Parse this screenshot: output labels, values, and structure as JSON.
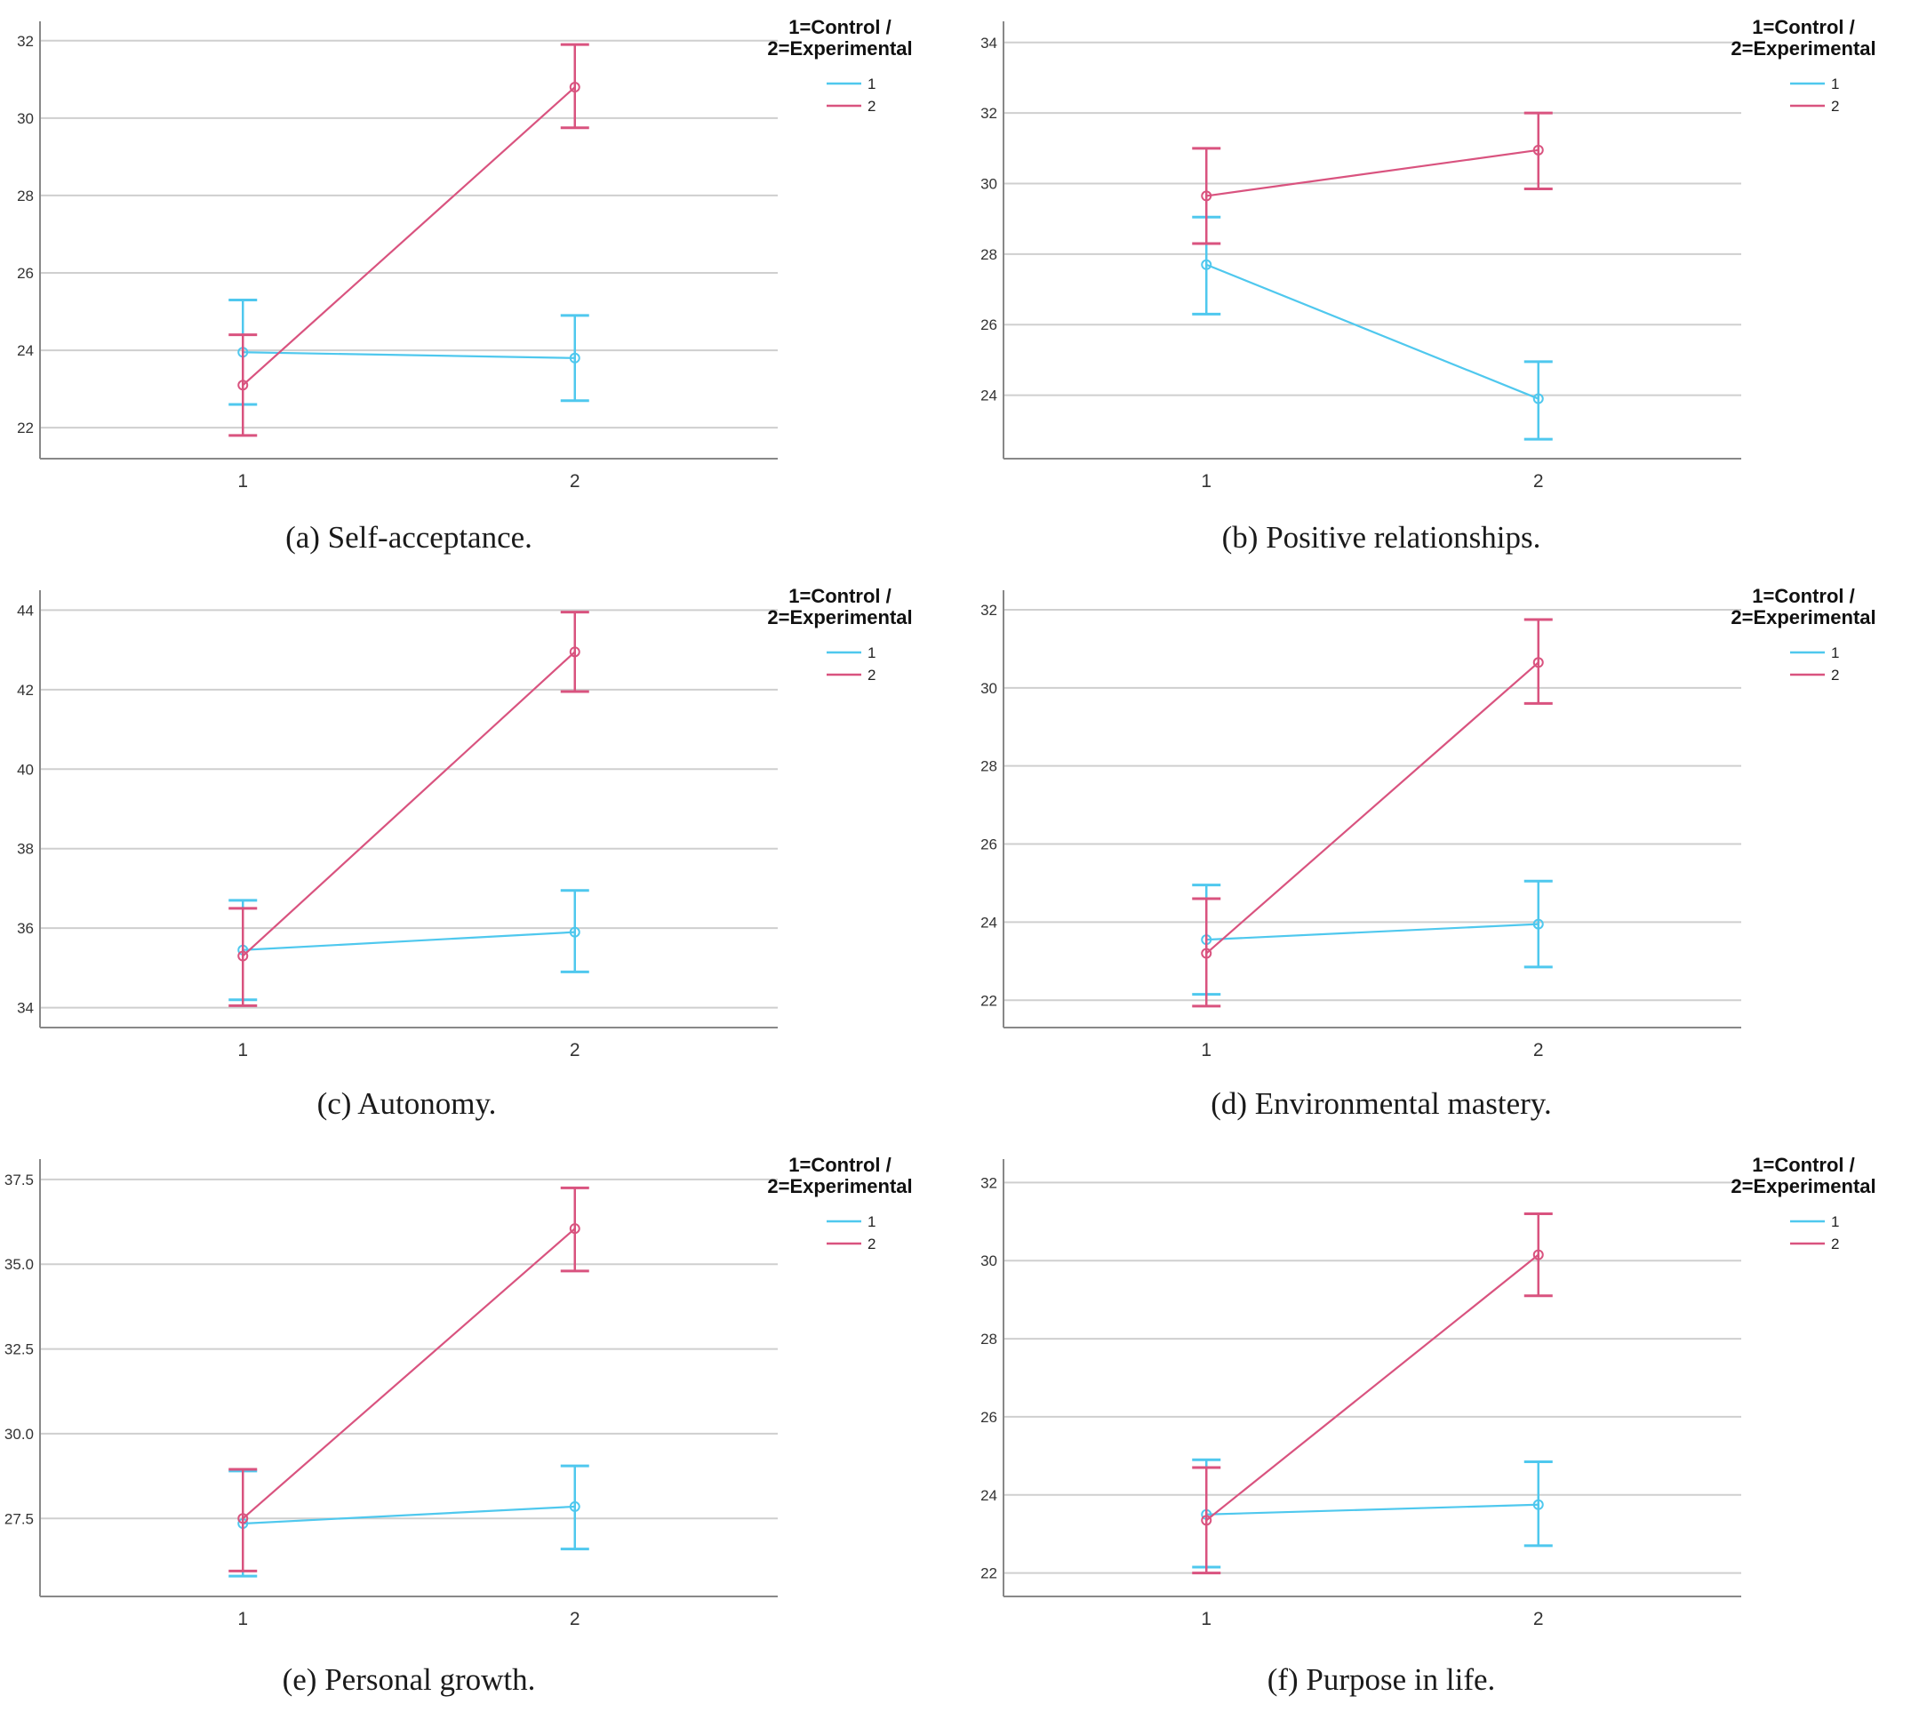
{
  "legend": {
    "title_lines": [
      "1=Control /",
      "2=Experimental"
    ],
    "entries": [
      {
        "label": "1",
        "color": "#4FC8EE"
      },
      {
        "label": "2",
        "color": "#D9537F"
      }
    ]
  },
  "chart_data": [
    {
      "id": "a",
      "type": "line",
      "caption": "(a) Self-acceptance.",
      "categories": [
        "1",
        "2"
      ],
      "y_ticks": [
        "22",
        "24",
        "26",
        "28",
        "30",
        "32"
      ],
      "ylim": [
        21.2,
        32.5
      ],
      "grid": true,
      "series": [
        {
          "name": "1",
          "values": [
            23.95,
            23.8
          ],
          "lower": [
            22.6,
            22.7
          ],
          "upper": [
            25.3,
            24.9
          ]
        },
        {
          "name": "2",
          "values": [
            23.1,
            30.8
          ],
          "lower": [
            21.8,
            29.75
          ],
          "upper": [
            24.4,
            31.9
          ]
        }
      ]
    },
    {
      "id": "b",
      "type": "line",
      "caption": "(b) Positive relationships.",
      "categories": [
        "1",
        "2"
      ],
      "y_ticks": [
        "24",
        "26",
        "28",
        "30",
        "32",
        "34"
      ],
      "ylim": [
        22.2,
        34.6
      ],
      "grid": true,
      "series": [
        {
          "name": "1",
          "values": [
            27.7,
            23.9
          ],
          "lower": [
            26.3,
            22.75
          ],
          "upper": [
            29.05,
            24.95
          ]
        },
        {
          "name": "2",
          "values": [
            29.65,
            30.95
          ],
          "lower": [
            28.3,
            29.85
          ],
          "upper": [
            31.0,
            32.0
          ]
        }
      ]
    },
    {
      "id": "c",
      "type": "line",
      "caption": "(c) Autonomy.",
      "categories": [
        "1",
        "2"
      ],
      "y_ticks": [
        "34",
        "36",
        "38",
        "40",
        "42",
        "44"
      ],
      "ylim": [
        33.5,
        44.5
      ],
      "grid": true,
      "series": [
        {
          "name": "1",
          "values": [
            35.45,
            35.9
          ],
          "lower": [
            34.2,
            34.9
          ],
          "upper": [
            36.7,
            36.95
          ]
        },
        {
          "name": "2",
          "values": [
            35.3,
            42.95
          ],
          "lower": [
            34.05,
            41.95
          ],
          "upper": [
            36.5,
            43.95
          ]
        }
      ]
    },
    {
      "id": "d",
      "type": "line",
      "caption": "(d) Environmental mastery.",
      "categories": [
        "1",
        "2"
      ],
      "y_ticks": [
        "22",
        "24",
        "26",
        "28",
        "30",
        "32"
      ],
      "ylim": [
        21.3,
        32.5
      ],
      "grid": true,
      "series": [
        {
          "name": "1",
          "values": [
            23.55,
            23.95
          ],
          "lower": [
            22.15,
            22.85
          ],
          "upper": [
            24.95,
            25.05
          ]
        },
        {
          "name": "2",
          "values": [
            23.2,
            30.65
          ],
          "lower": [
            21.85,
            29.6
          ],
          "upper": [
            24.6,
            31.75
          ]
        }
      ]
    },
    {
      "id": "e",
      "type": "line",
      "caption": "(e) Personal growth.",
      "categories": [
        "1",
        "2"
      ],
      "y_ticks": [
        "27.5",
        "30.0",
        "32.5",
        "35.0",
        "37.5"
      ],
      "ylim": [
        25.2,
        38.1
      ],
      "grid": true,
      "series": [
        {
          "name": "1",
          "values": [
            27.35,
            27.85
          ],
          "lower": [
            25.8,
            26.6
          ],
          "upper": [
            28.9,
            29.05
          ]
        },
        {
          "name": "2",
          "values": [
            27.5,
            36.05
          ],
          "lower": [
            25.95,
            34.8
          ],
          "upper": [
            28.95,
            37.25
          ]
        }
      ]
    },
    {
      "id": "f",
      "type": "line",
      "caption": "(f) Purpose in life.",
      "categories": [
        "1",
        "2"
      ],
      "y_ticks": [
        "22",
        "24",
        "26",
        "28",
        "30",
        "32"
      ],
      "ylim": [
        21.4,
        32.6
      ],
      "grid": true,
      "series": [
        {
          "name": "1",
          "values": [
            23.5,
            23.75
          ],
          "lower": [
            22.15,
            22.7
          ],
          "upper": [
            24.9,
            24.85
          ]
        },
        {
          "name": "2",
          "values": [
            23.35,
            30.15
          ],
          "lower": [
            22.0,
            29.1
          ],
          "upper": [
            24.7,
            31.2
          ]
        }
      ]
    }
  ]
}
